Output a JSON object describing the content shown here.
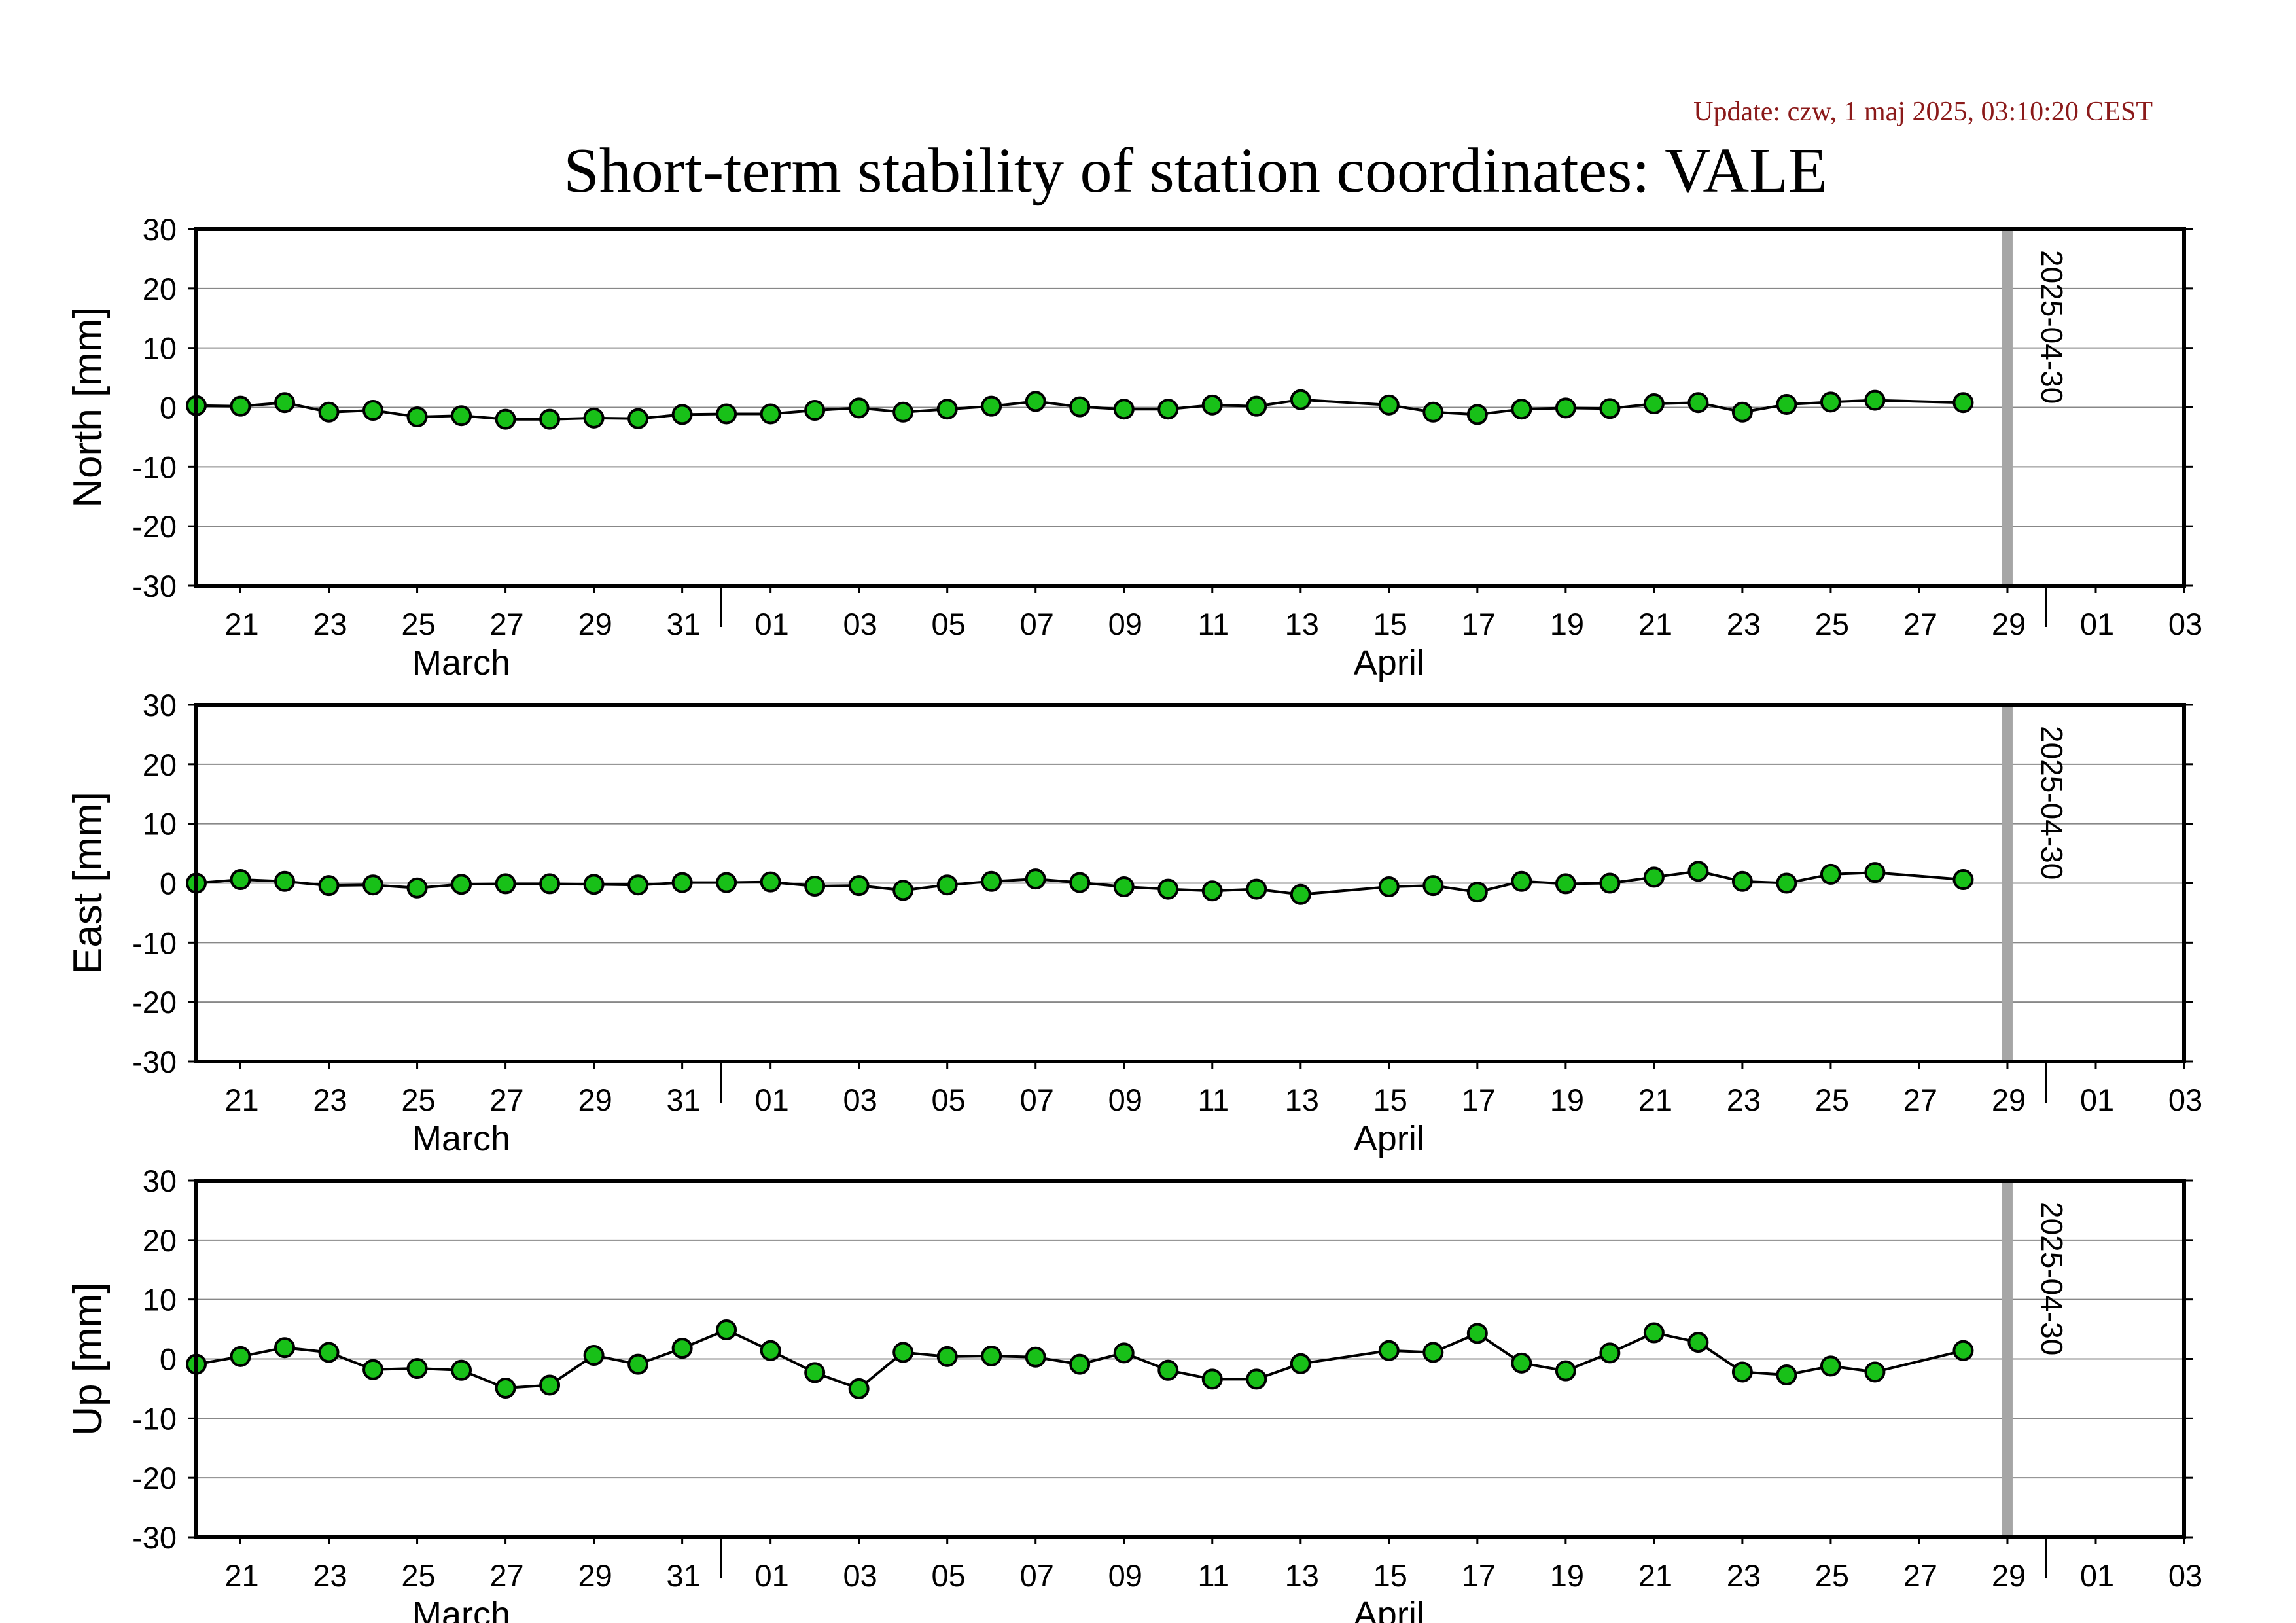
{
  "update_text": "Update: czw, 1 maj 2025, 03:10:20 CEST",
  "title": "Short-term stability of station coordinates: VALE",
  "colors": {
    "marker_fill": "#18c018",
    "marker_stroke": "#000000",
    "line": "#000000",
    "grid": "#888888",
    "vline": "#a6a6a6"
  },
  "chart_data": [
    {
      "type": "line",
      "ylabel": "North [mm]",
      "ylim": [
        -30,
        30
      ],
      "yticks": [
        "30",
        "20",
        "10",
        "0",
        "-10",
        "-20",
        "-30"
      ],
      "xlim": [
        "2025-03-20",
        "2025-05-04"
      ],
      "x_tick_labels": [
        "21",
        "23",
        "25",
        "27",
        "29",
        "31",
        "01",
        "03",
        "05",
        "07",
        "09",
        "11",
        "13",
        "15",
        "17",
        "19",
        "21",
        "23",
        "25",
        "27",
        "29",
        "01",
        "03"
      ],
      "month_labels": [
        "March",
        "April"
      ],
      "marked_date": "2025-04-30",
      "grid": true,
      "x": [
        "2025-03-20",
        "2025-03-21",
        "2025-03-22",
        "2025-03-23",
        "2025-03-24",
        "2025-03-25",
        "2025-03-26",
        "2025-03-27",
        "2025-03-28",
        "2025-03-29",
        "2025-03-30",
        "2025-03-31",
        "2025-04-01",
        "2025-04-02",
        "2025-04-03",
        "2025-04-04",
        "2025-04-05",
        "2025-04-06",
        "2025-04-07",
        "2025-04-08",
        "2025-04-09",
        "2025-04-10",
        "2025-04-11",
        "2025-04-12",
        "2025-04-13",
        "2025-04-14",
        "2025-04-16",
        "2025-04-17",
        "2025-04-18",
        "2025-04-19",
        "2025-04-20",
        "2025-04-21",
        "2025-04-22",
        "2025-04-23",
        "2025-04-24",
        "2025-04-25",
        "2025-04-26",
        "2025-04-27",
        "2025-04-29"
      ],
      "values": [
        0.3,
        0.2,
        0.8,
        -0.8,
        -0.5,
        -1.6,
        -1.4,
        -2.0,
        -2.0,
        -1.8,
        -1.9,
        -1.2,
        -1.1,
        -1.1,
        -0.5,
        -0.1,
        -0.8,
        -0.3,
        0.2,
        1.0,
        0.1,
        -0.3,
        -0.3,
        0.4,
        0.2,
        1.3,
        0.4,
        -0.8,
        -1.2,
        -0.3,
        -0.1,
        -0.2,
        0.6,
        0.8,
        -0.8,
        0.5,
        0.9,
        1.2,
        0.8
      ]
    },
    {
      "type": "line",
      "ylabel": "East [mm]",
      "ylim": [
        -30,
        30
      ],
      "yticks": [
        "30",
        "20",
        "10",
        "0",
        "-10",
        "-20",
        "-30"
      ],
      "xlim": [
        "2025-03-20",
        "2025-05-04"
      ],
      "x_tick_labels": [
        "21",
        "23",
        "25",
        "27",
        "29",
        "31",
        "01",
        "03",
        "05",
        "07",
        "09",
        "11",
        "13",
        "15",
        "17",
        "19",
        "21",
        "23",
        "25",
        "27",
        "29",
        "01",
        "03"
      ],
      "month_labels": [
        "March",
        "April"
      ],
      "marked_date": "2025-04-30",
      "grid": true,
      "x": [
        "2025-03-20",
        "2025-03-21",
        "2025-03-22",
        "2025-03-23",
        "2025-03-24",
        "2025-03-25",
        "2025-03-26",
        "2025-03-27",
        "2025-03-28",
        "2025-03-29",
        "2025-03-30",
        "2025-03-31",
        "2025-04-01",
        "2025-04-02",
        "2025-04-03",
        "2025-04-04",
        "2025-04-05",
        "2025-04-06",
        "2025-04-07",
        "2025-04-08",
        "2025-04-09",
        "2025-04-10",
        "2025-04-11",
        "2025-04-12",
        "2025-04-13",
        "2025-04-14",
        "2025-04-16",
        "2025-04-17",
        "2025-04-18",
        "2025-04-19",
        "2025-04-20",
        "2025-04-21",
        "2025-04-22",
        "2025-04-23",
        "2025-04-24",
        "2025-04-25",
        "2025-04-26",
        "2025-04-27",
        "2025-04-29"
      ],
      "values": [
        0.0,
        0.6,
        0.3,
        -0.4,
        -0.3,
        -0.8,
        -0.2,
        -0.1,
        -0.1,
        -0.2,
        -0.3,
        0.1,
        0.1,
        0.2,
        -0.5,
        -0.4,
        -1.2,
        -0.3,
        0.3,
        0.7,
        0.1,
        -0.6,
        -1.0,
        -1.3,
        -1.0,
        -1.9,
        -0.6,
        -0.4,
        -1.5,
        0.3,
        -0.1,
        0.0,
        1.0,
        2.0,
        0.3,
        0.0,
        1.5,
        1.8,
        0.6
      ]
    },
    {
      "type": "line",
      "ylabel": "Up [mm]",
      "ylim": [
        -30,
        30
      ],
      "yticks": [
        "30",
        "20",
        "10",
        "0",
        "-10",
        "-20",
        "-30"
      ],
      "xlim": [
        "2025-03-20",
        "2025-05-04"
      ],
      "x_tick_labels": [
        "21",
        "23",
        "25",
        "27",
        "29",
        "31",
        "01",
        "03",
        "05",
        "07",
        "09",
        "11",
        "13",
        "15",
        "17",
        "19",
        "21",
        "23",
        "25",
        "27",
        "29",
        "01",
        "03"
      ],
      "month_labels": [
        "March",
        "April"
      ],
      "marked_date": "2025-04-30",
      "grid": true,
      "x": [
        "2025-03-20",
        "2025-03-21",
        "2025-03-22",
        "2025-03-23",
        "2025-03-24",
        "2025-03-25",
        "2025-03-26",
        "2025-03-27",
        "2025-03-28",
        "2025-03-29",
        "2025-03-30",
        "2025-03-31",
        "2025-04-01",
        "2025-04-02",
        "2025-04-03",
        "2025-04-04",
        "2025-04-05",
        "2025-04-06",
        "2025-04-07",
        "2025-04-08",
        "2025-04-09",
        "2025-04-10",
        "2025-04-11",
        "2025-04-12",
        "2025-04-13",
        "2025-04-14",
        "2025-04-16",
        "2025-04-17",
        "2025-04-18",
        "2025-04-19",
        "2025-04-20",
        "2025-04-21",
        "2025-04-22",
        "2025-04-23",
        "2025-04-24",
        "2025-04-25",
        "2025-04-26",
        "2025-04-27",
        "2025-04-29"
      ],
      "values": [
        -0.9,
        0.4,
        1.9,
        1.1,
        -1.8,
        -1.6,
        -1.9,
        -4.9,
        -4.4,
        0.6,
        -0.9,
        1.8,
        4.9,
        1.4,
        -2.3,
        -5.0,
        1.1,
        0.4,
        0.5,
        0.3,
        -0.9,
        1.0,
        -1.9,
        -3.4,
        -3.4,
        -0.8,
        1.4,
        1.1,
        4.3,
        -0.7,
        -2.0,
        1.0,
        4.4,
        2.8,
        -2.2,
        -2.7,
        -1.2,
        -2.2,
        1.4
      ]
    }
  ]
}
